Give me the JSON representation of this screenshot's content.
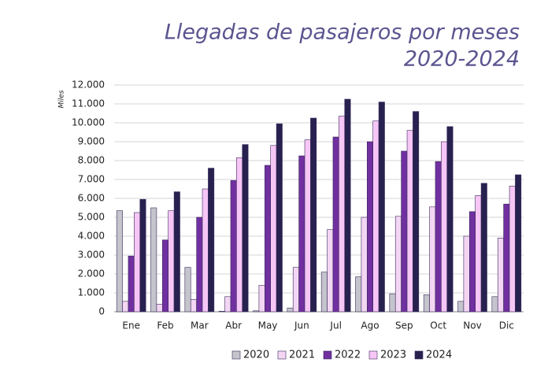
{
  "chart_data": {
    "type": "bar",
    "title": "Llegadas de pasajeros por meses",
    "subtitle": "2020-2024",
    "y_label": "Miles",
    "categories": [
      "Ene",
      "Feb",
      "Mar",
      "Abr",
      "May",
      "Jun",
      "Jul",
      "Ago",
      "Sep",
      "Oct",
      "Nov",
      "Dic"
    ],
    "series": [
      {
        "name": "2020",
        "color": "#c4c4cc",
        "values": [
          5350,
          5500,
          2350,
          30,
          50,
          200,
          2100,
          1850,
          950,
          900,
          550,
          800
        ]
      },
      {
        "name": "2021",
        "color": "#f3d6f3",
        "values": [
          550,
          400,
          650,
          800,
          1400,
          2350,
          4350,
          5000,
          5050,
          5550,
          4000,
          3900
        ]
      },
      {
        "name": "2022",
        "color": "#7030a0",
        "values": [
          2950,
          3800,
          5000,
          6950,
          7750,
          8250,
          9250,
          9000,
          8500,
          7950,
          5300,
          5700
        ]
      },
      {
        "name": "2023",
        "color": "#f6c6f6",
        "values": [
          5250,
          5350,
          6500,
          8150,
          8800,
          9100,
          10350,
          10100,
          9600,
          9000,
          6150,
          6650
        ]
      },
      {
        "name": "2024",
        "color": "#27214f",
        "values": [
          5950,
          6350,
          7600,
          8850,
          9950,
          10250,
          11250,
          11100,
          10600,
          9800,
          6800,
          7250
        ]
      }
    ],
    "ylim": [
      0,
      12000
    ],
    "yticks": [
      0,
      {
        "value": 1000,
        "label": "1.000"
      },
      {
        "value": 2000,
        "label": "2.000"
      },
      {
        "value": 3000,
        "label": "3.000"
      },
      {
        "value": 4000,
        "label": "4.000"
      },
      {
        "value": 5000,
        "label": "5.000"
      },
      {
        "value": 6000,
        "label": "6.000"
      },
      {
        "value": 7000,
        "label": "7.000"
      },
      {
        "value": 8000,
        "label": "8.000"
      },
      {
        "value": 9000,
        "label": "9.000"
      },
      {
        "value": 10000,
        "label": "10.000"
      },
      {
        "value": 11000,
        "label": "11.000"
      },
      {
        "value": 12000,
        "label": "12.000"
      }
    ],
    "grid": true,
    "legend": "bottom"
  }
}
